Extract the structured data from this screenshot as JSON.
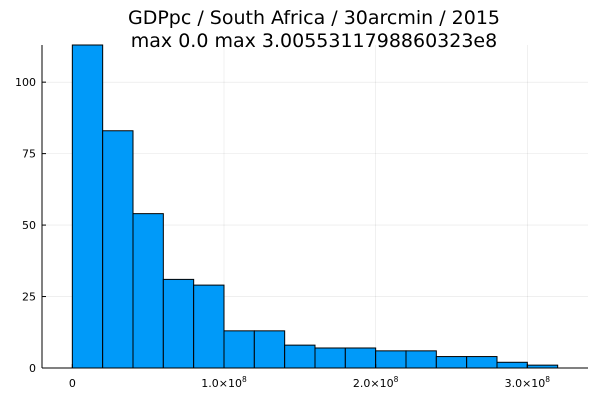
{
  "chart_data": {
    "type": "bar",
    "title_line1": "GDPpc / South Africa / 30arcmin / 2015",
    "title_line2": "max 0.0  max 3.0055311798860323e8",
    "bin_edges": [
      0,
      20000000,
      40000000,
      60000000,
      80000000,
      100000000,
      120000000,
      140000000,
      160000000,
      180000000,
      200000000,
      220000000,
      240000000,
      260000000,
      280000000,
      300000000,
      320000000
    ],
    "values": [
      113,
      83,
      54,
      31,
      29,
      13,
      13,
      8,
      7,
      7,
      6,
      6,
      4,
      4,
      2,
      1
    ],
    "xlim": [
      -20000000,
      340000000
    ],
    "ylim": [
      0,
      113
    ],
    "x_ticks": [
      {
        "value": 0,
        "mantissa": "0",
        "exp": ""
      },
      {
        "value": 100000000,
        "mantissa": "1.0×10",
        "exp": "8"
      },
      {
        "value": 200000000,
        "mantissa": "2.0×10",
        "exp": "8"
      },
      {
        "value": 300000000,
        "mantissa": "3.0×10",
        "exp": "8"
      }
    ],
    "y_ticks": [
      {
        "value": 0,
        "label": "0"
      },
      {
        "value": 25,
        "label": "25"
      },
      {
        "value": 50,
        "label": "50"
      },
      {
        "value": 75,
        "label": "75"
      },
      {
        "value": 100,
        "label": "100"
      }
    ],
    "grid": true,
    "legend": "none",
    "bar_color": "#009af9"
  }
}
